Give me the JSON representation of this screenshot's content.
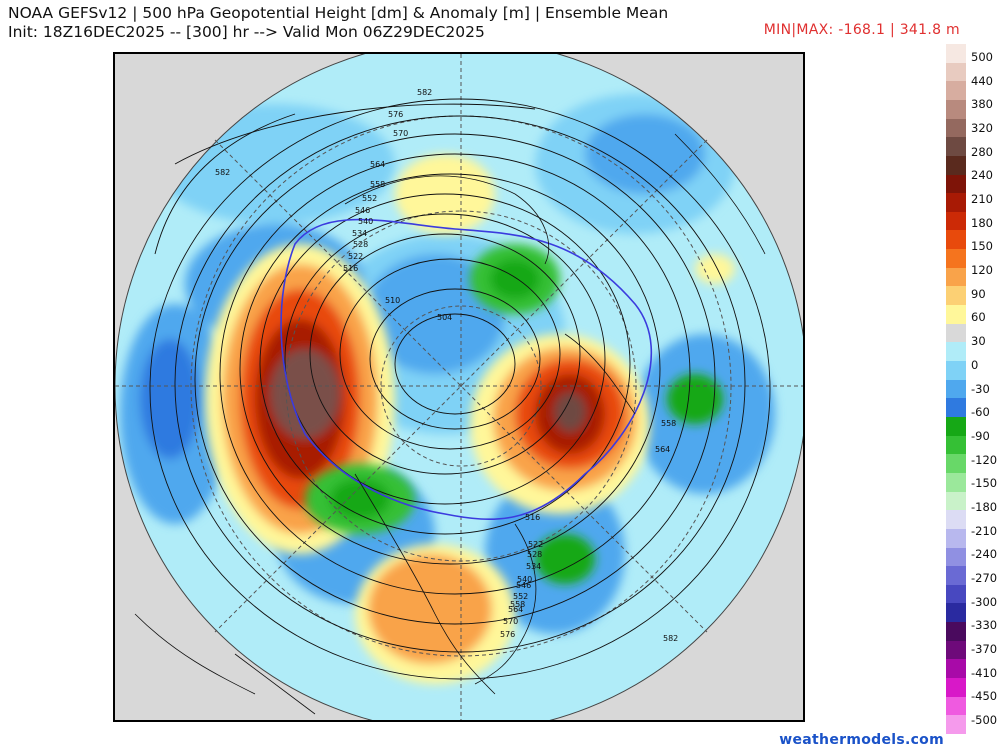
{
  "header": {
    "title_line1": "NOAA GEFSv12 | 500 hPa Geopotential Height [dm] & Anomaly [m] | Ensemble Mean",
    "title_line2": "Init: 18Z16DEC2025 -- [300] hr --> Valid Mon 06Z29DEC2025",
    "minmax": "MIN|MAX: -168.1 | 341.8 m"
  },
  "colorbar": {
    "labels": [
      "500",
      "440",
      "380",
      "320",
      "280",
      "240",
      "210",
      "180",
      "150",
      "120",
      "90",
      "60",
      "30",
      "0",
      "-30",
      "-60",
      "-90",
      "-120",
      "-150",
      "-180",
      "-210",
      "-240",
      "-270",
      "-300",
      "-330",
      "-370",
      "-410",
      "-450",
      "-500"
    ],
    "colors": [
      "#f6e8e2",
      "#e8cbc0",
      "#d7ada0",
      "#b88a7e",
      "#94695f",
      "#6e4a42",
      "#5a2a1e",
      "#7e1408",
      "#a81a05",
      "#cc2a06",
      "#e84a0c",
      "#f5741e",
      "#f9a34a",
      "#fcd074",
      "#fff79a",
      "#d9d9d9",
      "#b0ecf8",
      "#7fd2f6",
      "#4fa8ee",
      "#2f7ae0",
      "#16a816",
      "#35c035",
      "#68d868",
      "#9be89b",
      "#c9f2c9",
      "#dcdcf4",
      "#b8b8ee",
      "#9090e2",
      "#6a6ad4",
      "#4848c0",
      "#2a2aa0",
      "#4a0a5e",
      "#6e0a7a",
      "#a80aa8",
      "#d818c8",
      "#ef5ae0",
      "#f59aec"
    ]
  },
  "contour_labels": [
    "582",
    "576",
    "570",
    "564",
    "558",
    "552",
    "546",
    "540",
    "534",
    "528",
    "522",
    "516",
    "510",
    "504",
    "558",
    "564",
    "582",
    "516",
    "522",
    "528",
    "534",
    "540",
    "546",
    "552",
    "558",
    "564",
    "570",
    "576",
    "582"
  ],
  "credit": "weathermodels.com"
}
